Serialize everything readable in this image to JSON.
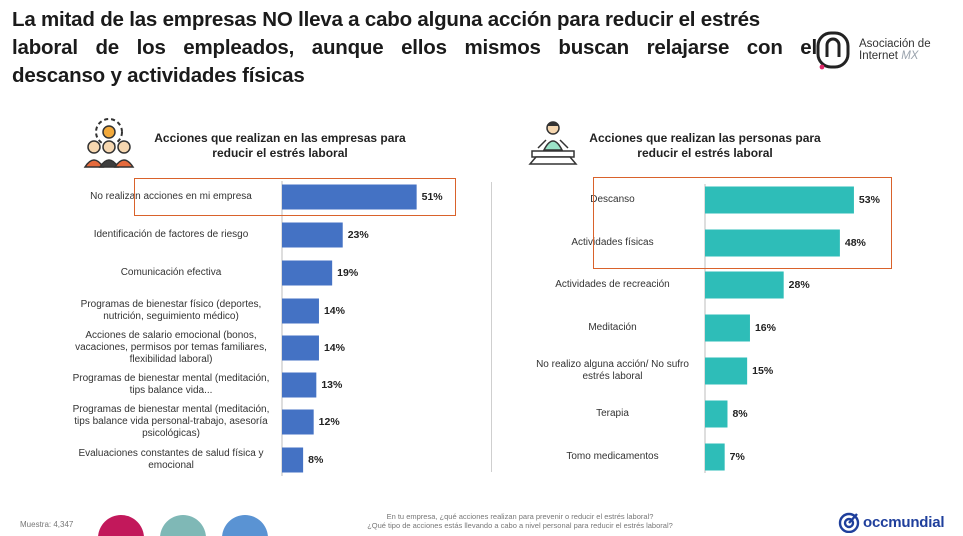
{
  "headline": {
    "line1": "La mitad de las empresas NO lleva a cabo alguna acción para reducir el estrés",
    "line2": "laboral de los empleados, aunque ellos mismos buscan relajarse con el",
    "line3": "descanso y actividades físicas"
  },
  "logo_amx": {
    "line1": "Asociación de",
    "line2": "Internet",
    "mx": "MX"
  },
  "left_panel": {
    "title": "Acciones que realizan en las empresas para reducir el estrés laboral",
    "icon": "team-at-work-icon"
  },
  "right_panel": {
    "title": "Acciones que realizan las personas para reducir el estrés laboral",
    "icon": "person-meditating-at-desk-icon"
  },
  "chart_data": [
    {
      "type": "bar",
      "orientation": "horizontal",
      "title": "Acciones que realizan en las empresas para reducir el estrés laboral",
      "categories": [
        "No realizan acciones en mi empresa",
        "Identificación de factores de riesgo",
        "Comunicación efectiva",
        "Programas de bienestar físico (deportes, nutrición, seguimiento médico)",
        "Acciones de salario emocional (bonos, vacaciones, permisos por temas familiares, flexibilidad laboral)",
        "Programas de bienestar mental (meditación, tips balance vida...",
        "Programas de bienestar mental (meditación, tips balance vida personal-trabajo, asesoría psicológicas)",
        "Evaluaciones constantes de salud física y emocional"
      ],
      "values": [
        51,
        23,
        19,
        14,
        14,
        13,
        12,
        8
      ],
      "value_labels": [
        "51%",
        "23%",
        "19%",
        "14%",
        "14%",
        "13%",
        "12%",
        "8%"
      ],
      "highlighted": [
        "No realizan acciones en mi empresa"
      ],
      "color": "#4472c4",
      "unit": "%"
    },
    {
      "type": "bar",
      "orientation": "horizontal",
      "title": "Acciones que realizan las personas para reducir el estrés laboral",
      "categories": [
        "Descanso",
        "Actividades físicas",
        "Actividades de recreación",
        "Meditación",
        "No realizo alguna acción/ No sufro estrés laboral",
        "Terapia",
        "Tomo medicamentos"
      ],
      "values": [
        53,
        48,
        28,
        16,
        15,
        8,
        7
      ],
      "value_labels": [
        "53%",
        "48%",
        "28%",
        "16%",
        "15%",
        "8%",
        "7%"
      ],
      "highlighted": [
        "Descanso",
        "Actividades físicas"
      ],
      "color": "#2ebdb8",
      "unit": "%"
    }
  ],
  "colors": {
    "left_bar": "#4472c4",
    "right_bar": "#2ebdb8",
    "highlight_border": "#d9622b",
    "circle_1": "#c2185b",
    "circle_2": "#7fb8b6",
    "circle_3": "#5a93d3",
    "brand": "#1f3f9c"
  },
  "footer": {
    "sample": "Muestra: 4,347",
    "question1": "En tu empresa, ¿qué acciones realizan para prevenir o reducir el estrés laboral?",
    "question2": "¿Qué tipo de acciones estás llevando a cabo a nivel personal para reducir el estrés laboral?",
    "brand": "occmundial",
    "brand_icon": "occ-target-icon"
  }
}
